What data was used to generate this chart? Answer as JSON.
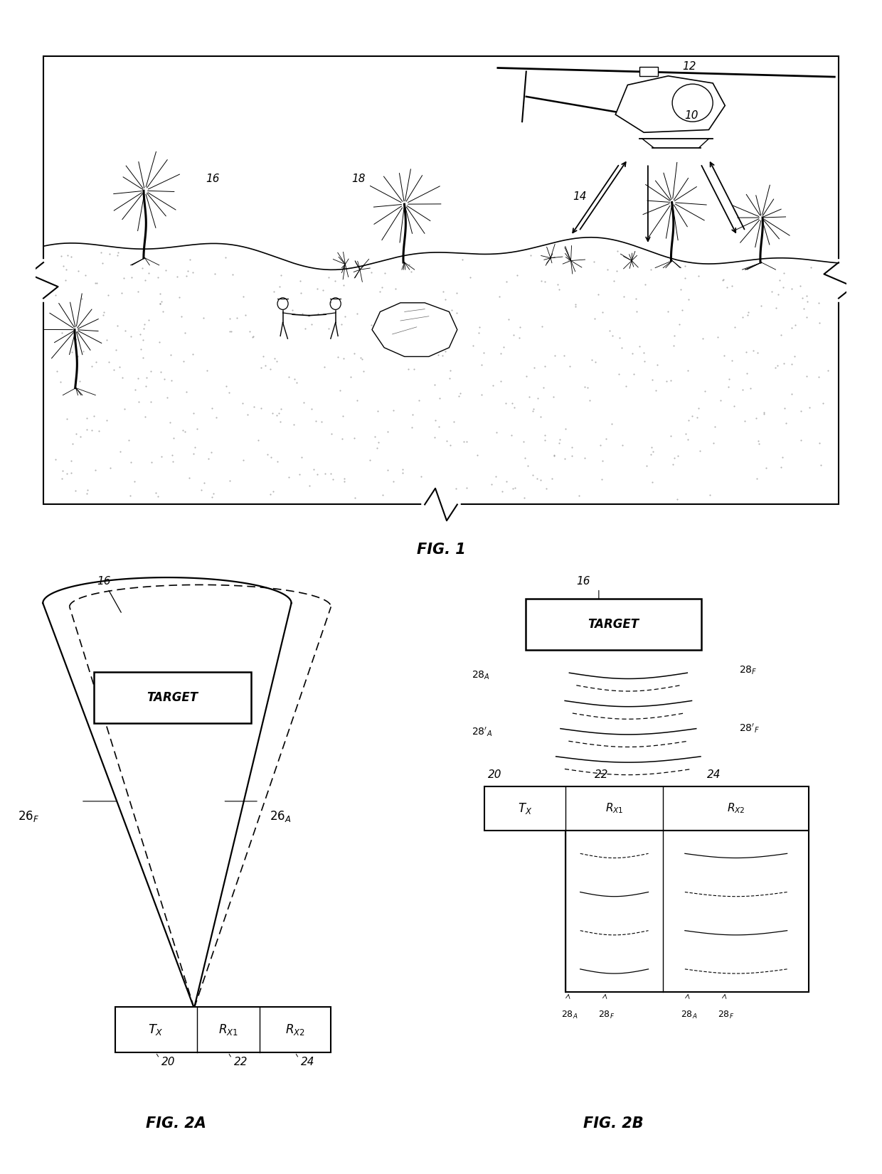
{
  "bg_color": "#ffffff",
  "line_color": "#000000",
  "fig1_label": "FIG. 1",
  "fig2a_label": "FIG. 2A",
  "fig2b_label": "FIG. 2B"
}
